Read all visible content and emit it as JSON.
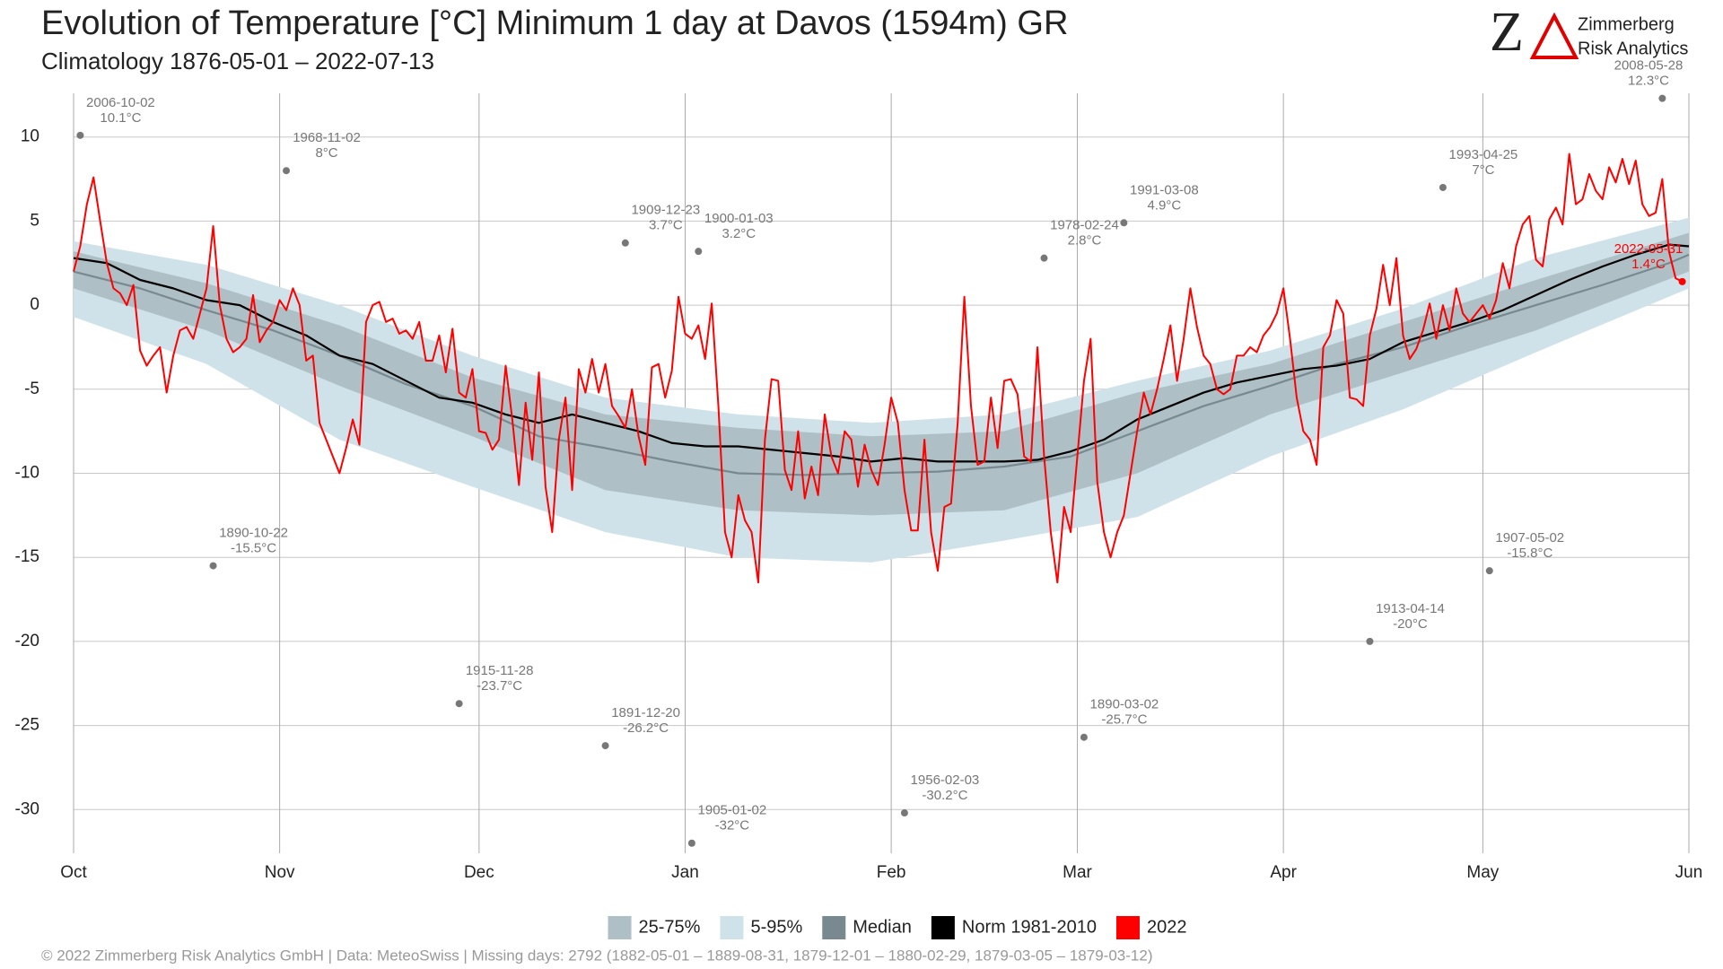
{
  "chart_data": {
    "type": "line",
    "title": "Evolution of Temperature [°C] Minimum 1 day at Davos (1594m) GR",
    "subtitle": "Climatology 1876-05-01 – 2022-07-13",
    "xlim": [
      0,
      243
    ],
    "ylim": [
      -32.6,
      12.6
    ],
    "xticks": [
      {
        "value": 0,
        "label": "Oct"
      },
      {
        "value": 31,
        "label": "Nov"
      },
      {
        "value": 61,
        "label": "Dec"
      },
      {
        "value": 92,
        "label": "Jan"
      },
      {
        "value": 123,
        "label": "Feb"
      },
      {
        "value": 151,
        "label": "Mar"
      },
      {
        "value": 182,
        "label": "Apr"
      },
      {
        "value": 212,
        "label": "May"
      },
      {
        "value": 243,
        "label": "Jun"
      }
    ],
    "yticks": [
      -30,
      -25,
      -20,
      -15,
      -10,
      -5,
      0,
      5,
      10
    ],
    "grid": true,
    "series": [
      {
        "name": "25-75%",
        "kind": "band",
        "color": "#aebfc6",
        "x": [
          0,
          20,
          40,
          60,
          80,
          100,
          120,
          140,
          160,
          180,
          200,
          220,
          243
        ],
        "low": [
          1,
          -1.5,
          -4.8,
          -7.8,
          -11,
          -12.2,
          -12.5,
          -12.2,
          -10,
          -6.5,
          -4,
          -1.5,
          2
        ],
        "high": [
          3.2,
          1.3,
          -1.2,
          -4.3,
          -6.5,
          -7.3,
          -7.8,
          -7.5,
          -5.2,
          -3.5,
          -1,
          1.5,
          4.3
        ]
      },
      {
        "name": "5-95%",
        "kind": "band",
        "color": "#d0e2e9",
        "x": [
          0,
          20,
          40,
          60,
          80,
          100,
          120,
          140,
          160,
          180,
          200,
          220,
          243
        ],
        "low": [
          -0.7,
          -3.5,
          -8,
          -10.8,
          -13.5,
          -15,
          -15.3,
          -14,
          -12.6,
          -9,
          -6.2,
          -2.8,
          1
        ],
        "high": [
          3.8,
          2.4,
          0,
          -3,
          -5.5,
          -6.5,
          -7,
          -6.5,
          -4.5,
          -2.7,
          -0.2,
          2.8,
          5.2
        ]
      },
      {
        "name": "Median",
        "kind": "line",
        "color": "#78898f",
        "x": [
          0,
          10,
          20,
          30,
          40,
          50,
          60,
          70,
          80,
          90,
          100,
          110,
          120,
          130,
          140,
          150,
          160,
          170,
          180,
          190,
          200,
          210,
          220,
          230,
          240,
          243
        ],
        "values": [
          2,
          1,
          -0.3,
          -1.5,
          -3,
          -4.7,
          -6,
          -7.8,
          -8.5,
          -9.3,
          -10,
          -10.1,
          -10,
          -9.9,
          -9.6,
          -9,
          -7.5,
          -6,
          -4.8,
          -3.5,
          -2.5,
          -1.2,
          0,
          1.2,
          2.5,
          3
        ]
      },
      {
        "name": "Norm 1981-2010",
        "kind": "line",
        "color": "#000000",
        "x": [
          0,
          5,
          10,
          15,
          20,
          25,
          30,
          35,
          40,
          45,
          50,
          55,
          60,
          65,
          70,
          75,
          80,
          85,
          90,
          95,
          100,
          105,
          110,
          115,
          120,
          125,
          130,
          135,
          140,
          145,
          150,
          155,
          160,
          165,
          170,
          175,
          180,
          185,
          190,
          195,
          200,
          205,
          210,
          215,
          220,
          225,
          230,
          235,
          240,
          243
        ],
        "values": [
          2.8,
          2.5,
          1.5,
          1,
          0.3,
          0,
          -1,
          -1.8,
          -3,
          -3.5,
          -4.5,
          -5.5,
          -5.8,
          -6.5,
          -7,
          -6.5,
          -7,
          -7.5,
          -8.2,
          -8.4,
          -8.4,
          -8.6,
          -8.8,
          -9,
          -9.3,
          -9.1,
          -9.3,
          -9.3,
          -9.3,
          -9.2,
          -8.7,
          -8,
          -6.8,
          -6,
          -5.2,
          -4.6,
          -4.2,
          -3.8,
          -3.6,
          -3.2,
          -2.2,
          -1.6,
          -1,
          -0.3,
          0.6,
          1.5,
          2.3,
          3,
          3.6,
          3.5
        ]
      },
      {
        "name": "2022",
        "kind": "line",
        "color": "#ff0000",
        "x": [
          0,
          1,
          2,
          3,
          4,
          5,
          6,
          7,
          8,
          9,
          10,
          11,
          12,
          13,
          14,
          15,
          16,
          17,
          18,
          19,
          20,
          21,
          22,
          23,
          24,
          25,
          26,
          27,
          28,
          29,
          30,
          31,
          32,
          33,
          34,
          35,
          36,
          37,
          38,
          39,
          40,
          41,
          42,
          43,
          44,
          45,
          46,
          47,
          48,
          49,
          50,
          51,
          52,
          53,
          54,
          55,
          56,
          57,
          58,
          59,
          60,
          61,
          62,
          63,
          64,
          65,
          66,
          67,
          68,
          69,
          70,
          71,
          72,
          73,
          74,
          75,
          76,
          77,
          78,
          79,
          80,
          81,
          82,
          83,
          84,
          85,
          86,
          87,
          88,
          89,
          90,
          91,
          92,
          93,
          94,
          95,
          96,
          97,
          98,
          99,
          100,
          101,
          102,
          103,
          104,
          105,
          106,
          107,
          108,
          109,
          110,
          111,
          112,
          113,
          114,
          115,
          116,
          117,
          118,
          119,
          120,
          121,
          122,
          123,
          124,
          125,
          126,
          127,
          128,
          129,
          130,
          131,
          132,
          133,
          134,
          135,
          136,
          137,
          138,
          139,
          140,
          141,
          142,
          143,
          144,
          145,
          146,
          147,
          148,
          149,
          150,
          151,
          152,
          153,
          154,
          155,
          156,
          157,
          158,
          159,
          160,
          161,
          162,
          163,
          164,
          165,
          166,
          167,
          168,
          169,
          170,
          171,
          172,
          173,
          174,
          175,
          176,
          177,
          178,
          179,
          180,
          181,
          182,
          183,
          184,
          185,
          186,
          187,
          188,
          189,
          190,
          191,
          192,
          193,
          194,
          195,
          196,
          197,
          198,
          199,
          200,
          201,
          202,
          203,
          204,
          205,
          206,
          207,
          208,
          209,
          210,
          211,
          212,
          213,
          214,
          215,
          216,
          217,
          218,
          219,
          220,
          221,
          222,
          223,
          224,
          225,
          226,
          227,
          228,
          229,
          230,
          231,
          232,
          233,
          234,
          235,
          236,
          237,
          238,
          239,
          240,
          241,
          242
        ],
        "values": [
          2,
          3.5,
          6,
          7.6,
          5,
          2.5,
          1,
          0.7,
          0,
          1.2,
          -2.7,
          -3.6,
          -3,
          -2.5,
          -5.2,
          -3,
          -1.5,
          -1.3,
          -2,
          -0.5,
          1,
          4.7,
          0,
          -2,
          -2.8,
          -2.5,
          -2,
          0.6,
          -2.2,
          -1.5,
          -1,
          0.3,
          -0.3,
          1,
          0,
          -3.3,
          -3,
          -7,
          -8,
          -9,
          -10,
          -8.5,
          -6.8,
          -8.3,
          -1,
          0,
          0.2,
          -1,
          -0.8,
          -1.7,
          -1.5,
          -2,
          -1,
          -3.3,
          -3.3,
          -1.8,
          -4,
          -1.4,
          -5.2,
          -5.5,
          -3.8,
          -7.5,
          -7.6,
          -8.6,
          -8,
          -3.6,
          -6.8,
          -10.7,
          -5.8,
          -9.2,
          -4,
          -10.8,
          -13.5,
          -8,
          -5.5,
          -11,
          -3.8,
          -5.2,
          -3.2,
          -5.2,
          -3.5,
          -6,
          -6.6,
          -7.3,
          -5,
          -7.8,
          -9.5,
          -3.7,
          -3.5,
          -5.5,
          -3.9,
          0.5,
          -1.7,
          -2,
          -1.2,
          -3.2,
          0.1,
          -6,
          -13.5,
          -15,
          -11.3,
          -12.8,
          -13.5,
          -16.5,
          -8,
          -4.4,
          -4.5,
          -9.8,
          -11,
          -7.5,
          -11.5,
          -9.6,
          -11.3,
          -6.5,
          -9,
          -10,
          -7.5,
          -8,
          -10.8,
          -8.3,
          -9.8,
          -10.7,
          -8.3,
          -5.5,
          -7,
          -11,
          -13.4,
          -13.4,
          -8,
          -13.5,
          -15.8,
          -12,
          -11.8,
          -7,
          0.5,
          -6,
          -9.5,
          -9.3,
          -5.5,
          -8.5,
          -4.5,
          -4.4,
          -5.3,
          -9,
          -9.3,
          -2.5,
          -9,
          -13.5,
          -16.5,
          -12,
          -13.5,
          -9,
          -4.5,
          -2,
          -10.5,
          -13.5,
          -15,
          -13.5,
          -12.5,
          -10,
          -7.5,
          -5.2,
          -6.5,
          -5,
          -3.2,
          -1.2,
          -4.5,
          -2,
          1,
          -1.3,
          -3,
          -3.5,
          -5,
          -5.3,
          -5,
          -3,
          -3,
          -2.5,
          -2.8,
          -1.8,
          -1.3,
          -0.5,
          1,
          -2,
          -5.5,
          -7.5,
          -8,
          -9.5,
          -2.5,
          -1.8,
          0.3,
          -0.5,
          -5.5,
          -5.6,
          -6,
          -1.8,
          -0.2,
          2.4,
          0,
          2.8,
          -1.8,
          -3.2,
          -2.6,
          -1.5,
          0.1,
          -2,
          0,
          -1.5,
          1,
          -0.5,
          -1,
          -0.5,
          0,
          -0.8,
          0.3,
          2.5,
          1,
          3.5,
          4.8,
          5.3,
          2.7,
          2.3,
          5.1,
          5.8,
          4.8,
          9,
          6,
          6.3,
          7.8,
          6.8,
          6.3,
          8.2,
          7.3,
          8.7,
          7.2,
          8.6,
          6,
          5.3,
          5.5,
          7.5,
          3.2,
          1.6,
          1.4
        ]
      }
    ],
    "annotations": [
      {
        "date": "2006-10-02",
        "label": "10.1°C",
        "x": 1,
        "y": 10.1,
        "color": "#777777"
      },
      {
        "date": "1968-11-02",
        "label": "8°C",
        "x": 32,
        "y": 8,
        "color": "#777777"
      },
      {
        "date": "1909-12-23",
        "label": "3.7°C",
        "x": 83,
        "y": 3.7,
        "color": "#777777"
      },
      {
        "date": "1900-01-03",
        "label": "3.2°C",
        "x": 94,
        "y": 3.2,
        "color": "#777777"
      },
      {
        "date": "1978-02-24",
        "label": "2.8°C",
        "x": 146,
        "y": 2.8,
        "color": "#777777"
      },
      {
        "date": "1991-03-08",
        "label": "4.9°C",
        "x": 158,
        "y": 4.9,
        "color": "#777777"
      },
      {
        "date": "1993-04-25",
        "label": "7°C",
        "x": 206,
        "y": 7,
        "color": "#777777"
      },
      {
        "date": "2008-05-28",
        "label": "12.3°C",
        "x": 239,
        "y": 12.3,
        "color": "#777777"
      },
      {
        "date": "2022-05-31",
        "label": "1.4°C",
        "x": 242,
        "y": 1.4,
        "color": "#ff0000"
      },
      {
        "date": "1890-10-22",
        "label": "-15.5°C",
        "x": 21,
        "y": -15.5,
        "color": "#777777"
      },
      {
        "date": "1915-11-28",
        "label": "-23.7°C",
        "x": 58,
        "y": -23.7,
        "color": "#777777"
      },
      {
        "date": "1891-12-20",
        "label": "-26.2°C",
        "x": 80,
        "y": -26.2,
        "color": "#777777"
      },
      {
        "date": "1905-01-02",
        "label": "-32°C",
        "x": 93,
        "y": -32,
        "color": "#777777"
      },
      {
        "date": "1956-02-03",
        "label": "-30.2°C",
        "x": 125,
        "y": -30.2,
        "color": "#777777"
      },
      {
        "date": "1890-03-02",
        "label": "-25.7°C",
        "x": 152,
        "y": -25.7,
        "color": "#777777"
      },
      {
        "date": "1913-04-14",
        "label": "-20°C",
        "x": 195,
        "y": -20,
        "color": "#777777"
      },
      {
        "date": "1907-05-02",
        "label": "-15.8°C",
        "x": 213,
        "y": -15.8,
        "color": "#777777"
      }
    ]
  },
  "logo": {
    "mark": "Z",
    "name": "Zimmerberg",
    "subname": "Risk Analytics"
  },
  "footer": "©  2022 Zimmerberg Risk Analytics GmbH | Data: MeteoSwiss | Missing days: 2792 (1882-05-01 – 1889-08-31, 1879-12-01 – 1880-02-29, 1879-03-05 – 1879-03-12)"
}
